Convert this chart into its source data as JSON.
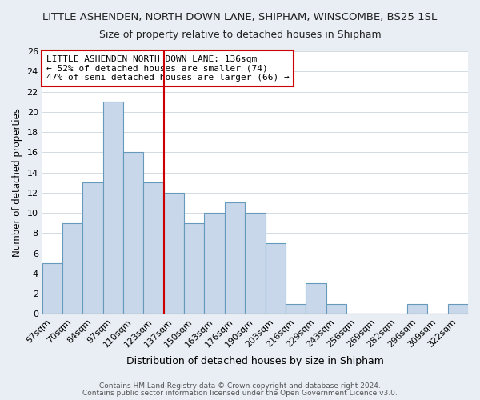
{
  "title": "LITTLE ASHENDEN, NORTH DOWN LANE, SHIPHAM, WINSCOMBE, BS25 1SL",
  "subtitle": "Size of property relative to detached houses in Shipham",
  "xlabel": "Distribution of detached houses by size in Shipham",
  "ylabel": "Number of detached properties",
  "footer_line1": "Contains HM Land Registry data © Crown copyright and database right 2024.",
  "footer_line2": "Contains public sector information licensed under the Open Government Licence v3.0.",
  "bin_labels": [
    "57sqm",
    "70sqm",
    "84sqm",
    "97sqm",
    "110sqm",
    "123sqm",
    "137sqm",
    "150sqm",
    "163sqm",
    "176sqm",
    "190sqm",
    "203sqm",
    "216sqm",
    "229sqm",
    "243sqm",
    "256sqm",
    "269sqm",
    "282sqm",
    "296sqm",
    "309sqm",
    "322sqm"
  ],
  "bar_heights": [
    5,
    9,
    13,
    21,
    16,
    13,
    12,
    9,
    10,
    11,
    10,
    7,
    1,
    3,
    1,
    0,
    0,
    0,
    1,
    0,
    1
  ],
  "bar_color": "#c8d8ea",
  "bar_edge_color": "#6699bb",
  "vline_index": 6,
  "vline_color": "#cc0000",
  "ylim": [
    0,
    26
  ],
  "yticks": [
    0,
    2,
    4,
    6,
    8,
    10,
    12,
    14,
    16,
    18,
    20,
    22,
    24,
    26
  ],
  "annotation_title": "LITTLE ASHENDEN NORTH DOWN LANE: 136sqm",
  "annotation_line1": "← 52% of detached houses are smaller (74)",
  "annotation_line2": "47% of semi-detached houses are larger (66) →",
  "background_color": "#e8eef4",
  "plot_bg_color": "#ffffff",
  "grid_color": "#c0ccd8",
  "title_fontsize": 9.5,
  "subtitle_fontsize": 9.0,
  "xlabel_fontsize": 9.0,
  "ylabel_fontsize": 8.5,
  "tick_fontsize": 8,
  "annot_fontsize": 8.0,
  "footer_fontsize": 6.5,
  "footer_color": "#555555"
}
